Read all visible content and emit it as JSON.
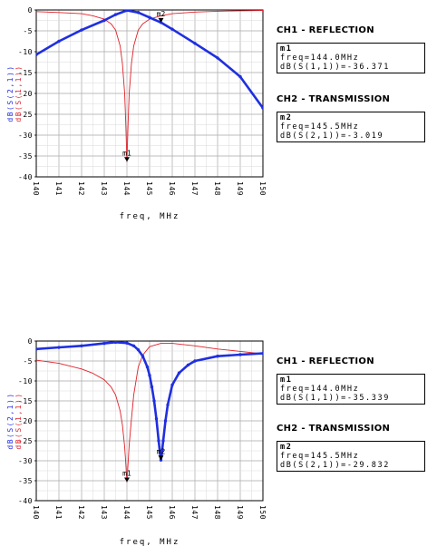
{
  "charts": [
    {
      "chart_data": {
        "type": "line",
        "xlabel": "freq, MHz",
        "ylabel_parts": [
          {
            "text": "dB(S(2,1))",
            "color": "#1f2fe0"
          },
          {
            "text": "dB(S(1,1))",
            "color": "#e0222a"
          }
        ],
        "xlim": [
          140,
          150
        ],
        "ylim": [
          -40,
          0
        ],
        "x_ticks": [
          "140",
          "141",
          "142",
          "143",
          "144",
          "145",
          "146",
          "147",
          "148",
          "149",
          "150"
        ],
        "y_ticks": [
          "0",
          "-5",
          "-10",
          "-15",
          "-20",
          "-25",
          "-30",
          "-35",
          "-40"
        ],
        "grid": true,
        "series": [
          {
            "key": "s11",
            "color": "#e0222a",
            "x": [
              140,
              141,
              142,
              142.5,
              143,
              143.3,
              143.5,
              143.7,
              143.8,
              143.9,
              143.95,
              144,
              144.05,
              144.1,
              144.2,
              144.3,
              144.5,
              144.7,
              145,
              145.5,
              146,
              146.5,
              147,
              148,
              149,
              150
            ],
            "y": [
              -0.4,
              -0.6,
              -0.9,
              -1.4,
              -2.2,
              -3.3,
              -4.8,
              -8.6,
              -12.8,
              -20.0,
              -27.0,
              -36.37,
              -27.0,
              -20.0,
              -12.8,
              -8.6,
              -4.8,
              -3.3,
              -2.2,
              -1.4,
              -0.9,
              -0.7,
              -0.5,
              -0.3,
              -0.2,
              -0.1
            ]
          },
          {
            "key": "s21",
            "color": "#1f2fe0",
            "x": [
              140,
              141,
              142,
              143,
              143.5,
              144,
              144.5,
              145,
              145.5,
              146,
              147,
              148,
              149,
              150
            ],
            "y": [
              -10.7,
              -7.5,
              -4.8,
              -2.5,
              -1.1,
              -0.1,
              -0.6,
              -1.8,
              -3.0,
              -4.6,
              -8.0,
              -11.5,
              -16.0,
              -23.5
            ]
          }
        ],
        "markers": [
          {
            "label": "m1",
            "series": "s11",
            "x": 144.0,
            "y": -36.371
          },
          {
            "label": "m2",
            "series": "s21",
            "x": 145.5,
            "y": -3.019
          }
        ]
      },
      "sections": [
        {
          "title": "CH1 - REFLECTION",
          "marker": "m1",
          "freq": "freq=144.0MHz",
          "value": "dB(S(1,1))=-36.371"
        },
        {
          "title": "CH2 - TRANSMISSION",
          "marker": "m2",
          "freq": "freq=145.5MHz",
          "value": "dB(S(2,1))=-3.019"
        }
      ]
    },
    {
      "chart_data": {
        "type": "line",
        "xlabel": "freq, MHz",
        "ylabel_parts": [
          {
            "text": "dB(S(2,1))",
            "color": "#1f2fe0"
          },
          {
            "text": "dB(S(1,1))",
            "color": "#e0222a"
          }
        ],
        "xlim": [
          140,
          150
        ],
        "ylim": [
          -40,
          0
        ],
        "x_ticks": [
          "140",
          "141",
          "142",
          "143",
          "144",
          "145",
          "146",
          "147",
          "148",
          "149",
          "150"
        ],
        "y_ticks": [
          "0",
          "-5",
          "-10",
          "-15",
          "-20",
          "-25",
          "-30",
          "-35",
          "-40"
        ],
        "grid": true,
        "series": [
          {
            "key": "s11",
            "color": "#e0222a",
            "x": [
              140,
              141,
              142,
              142.5,
              143,
              143.3,
              143.5,
              143.7,
              143.8,
              143.9,
              143.95,
              144,
              144.05,
              144.1,
              144.2,
              144.3,
              144.5,
              144.7,
              145,
              145.5,
              146,
              147,
              148,
              149,
              150
            ],
            "y": [
              -4.8,
              -5.6,
              -7.0,
              -8.1,
              -9.7,
              -11.5,
              -13.5,
              -17.5,
              -21.0,
              -26.5,
              -30.5,
              -35.339,
              -30.5,
              -26.0,
              -19.5,
              -13.5,
              -6.5,
              -3.5,
              -1.4,
              -0.6,
              -0.6,
              -1.2,
              -2.0,
              -2.6,
              -3.2
            ]
          },
          {
            "key": "s21",
            "color": "#1f2fe0",
            "x": [
              140,
              141,
              142,
              143,
              143.5,
              144,
              144.3,
              144.5,
              144.7,
              144.9,
              145,
              145.1,
              145.2,
              145.3,
              145.4,
              145.45,
              145.5,
              145.55,
              145.6,
              145.7,
              145.8,
              146,
              146.3,
              146.7,
              147,
              148,
              149,
              150
            ],
            "y": [
              -2.0,
              -1.6,
              -1.2,
              -0.6,
              -0.3,
              -0.5,
              -1.2,
              -2.2,
              -3.8,
              -6.5,
              -8.6,
              -11.5,
              -15.0,
              -19.5,
              -25.0,
              -27.5,
              -29.832,
              -27.5,
              -25.0,
              -20.0,
              -16.0,
              -11.0,
              -8.0,
              -6.0,
              -5.0,
              -3.8,
              -3.4,
              -3.1
            ]
          }
        ],
        "markers": [
          {
            "label": "m1",
            "series": "s11",
            "x": 144.0,
            "y": -35.339
          },
          {
            "label": "m2",
            "series": "s21",
            "x": 145.5,
            "y": -29.832
          }
        ]
      },
      "sections": [
        {
          "title": "CH1 - REFLECTION",
          "marker": "m1",
          "freq": "freq=144.0MHz",
          "value": "dB(S(1,1))=-35.339"
        },
        {
          "title": "CH2 - TRANSMISSION",
          "marker": "m2",
          "freq": "freq=145.5MHz",
          "value": "dB(S(2,1))=-29.832"
        }
      ]
    }
  ]
}
